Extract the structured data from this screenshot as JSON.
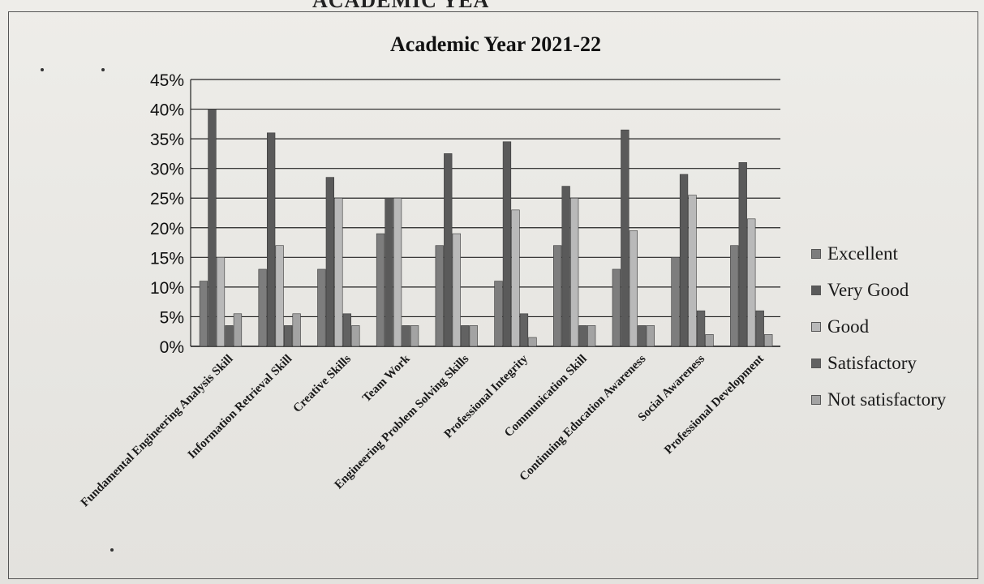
{
  "header_fragment": "ACADEMIC YEA",
  "chart_data": {
    "type": "bar",
    "title": "Academic Year 2021-22",
    "categories": [
      "Fundamental Engineering Analysis Skill",
      "Information Retrieval Skill",
      "Creative Skills",
      "Team Work",
      "Engineering Problem Solving Skills",
      "Professional Integrity",
      "Communication Skill",
      "Continuing Education Awareness",
      "Social Awareness",
      "Professional Development"
    ],
    "series": [
      {
        "name": "Excellent",
        "color": "#7d7d7d",
        "values": [
          11,
          13,
          13,
          19,
          17,
          11,
          17,
          13,
          15,
          17
        ]
      },
      {
        "name": "Very Good",
        "color": "#5a5a5a",
        "values": [
          40,
          36,
          28.5,
          25,
          32.5,
          34.5,
          27,
          36.5,
          29,
          31
        ]
      },
      {
        "name": "Good",
        "color": "#b9b9b9",
        "values": [
          15,
          17,
          25,
          25,
          19,
          23,
          25,
          19.5,
          25.5,
          21.5
        ]
      },
      {
        "name": "Satisfactory",
        "color": "#626262",
        "values": [
          3.5,
          3.5,
          5.5,
          3.5,
          3.5,
          5.5,
          3.5,
          3.5,
          6,
          6
        ]
      },
      {
        "name": "Not satisfactory",
        "color": "#a3a3a3",
        "values": [
          5.5,
          5.5,
          3.5,
          3.5,
          3.5,
          1.5,
          3.5,
          3.5,
          2,
          2
        ]
      }
    ],
    "y_ticks": [
      "0%",
      "5%",
      "10%",
      "15%",
      "20%",
      "25%",
      "30%",
      "35%",
      "40%",
      "45%"
    ],
    "ylim": [
      0,
      45
    ],
    "grid": true,
    "legend_position": "right"
  }
}
